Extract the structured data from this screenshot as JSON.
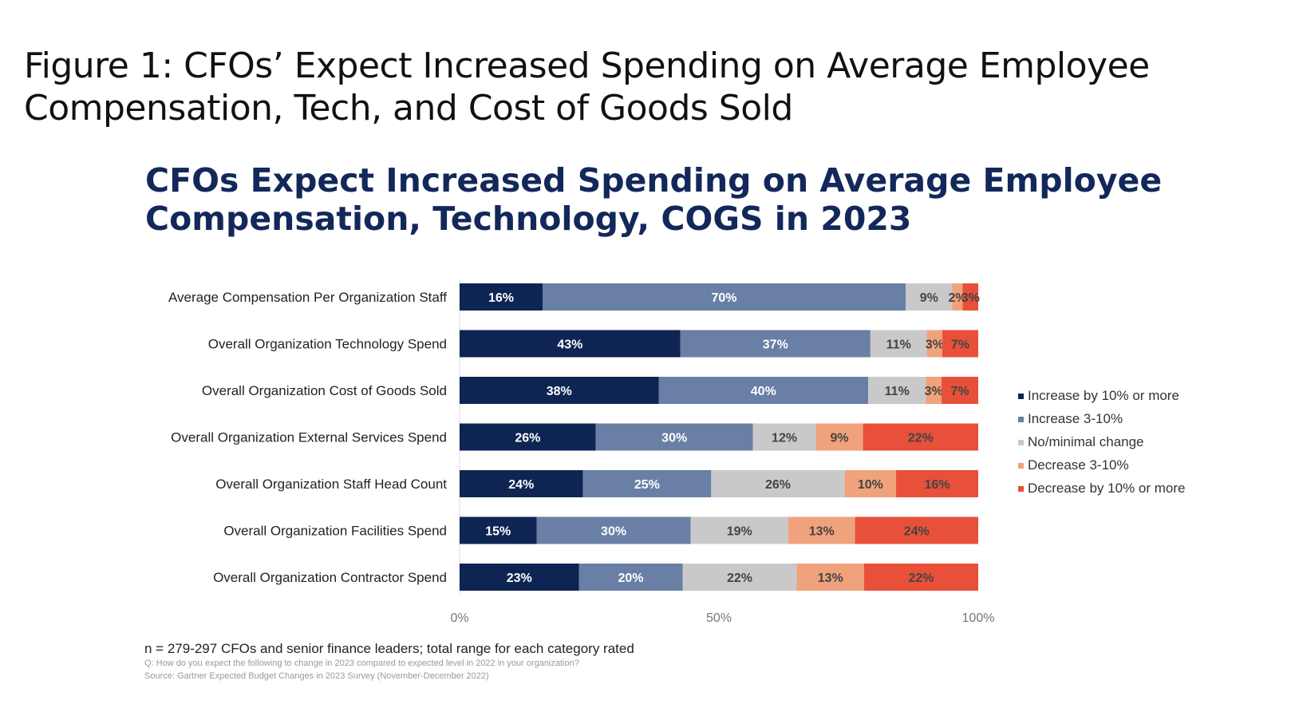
{
  "figure_title": "Figure 1: CFOs’ Expect Increased Spending on Average Employee Compensation, Tech, and Cost of Goods Sold",
  "chart_data": {
    "type": "bar",
    "orientation": "horizontal",
    "stacked": "100%",
    "title": "CFOs Expect Increased Spending on Average Employee Compensation, Technology, COGS in 2023",
    "categories": [
      "Average Compensation Per Organization Staff",
      "Overall Organization Technology Spend",
      "Overall Organization Cost of Goods Sold",
      "Overall Organization External Services Spend",
      "Overall Organization Staff Head Count",
      "Overall Organization Facilities Spend",
      "Overall Organization Contractor Spend"
    ],
    "series": [
      {
        "name": "Increase by 10% or more",
        "color": "#0e2453",
        "values": [
          16,
          43,
          38,
          26,
          24,
          15,
          23
        ]
      },
      {
        "name": "Increase 3-10%",
        "color": "#6a7fa5",
        "values": [
          70,
          37,
          40,
          30,
          25,
          30,
          20
        ]
      },
      {
        "name": "No/minimal change",
        "color": "#c9c9c9",
        "values": [
          9,
          11,
          11,
          12,
          26,
          19,
          22
        ]
      },
      {
        "name": "Decrease 3-10%",
        "color": "#f0a27c",
        "values": [
          2,
          3,
          3,
          9,
          10,
          13,
          13
        ]
      },
      {
        "name": "Decrease by 10% or more",
        "color": "#e8503a",
        "values": [
          3,
          7,
          7,
          22,
          16,
          24,
          22
        ]
      }
    ],
    "xlim": [
      0,
      100
    ],
    "xticks": [
      "0%",
      "50%",
      "100%"
    ],
    "legend_position": "right",
    "grid": false
  },
  "footnote": "n = 279-297 CFOs and senior finance leaders; total range for each category rated",
  "question": "Q: How do you expect the following to change in 2023 compared to expected level in 2022 in your organization?",
  "source": "Source: Gartner Expected Budget Changes in 2023 Survey (November-December 2022)"
}
